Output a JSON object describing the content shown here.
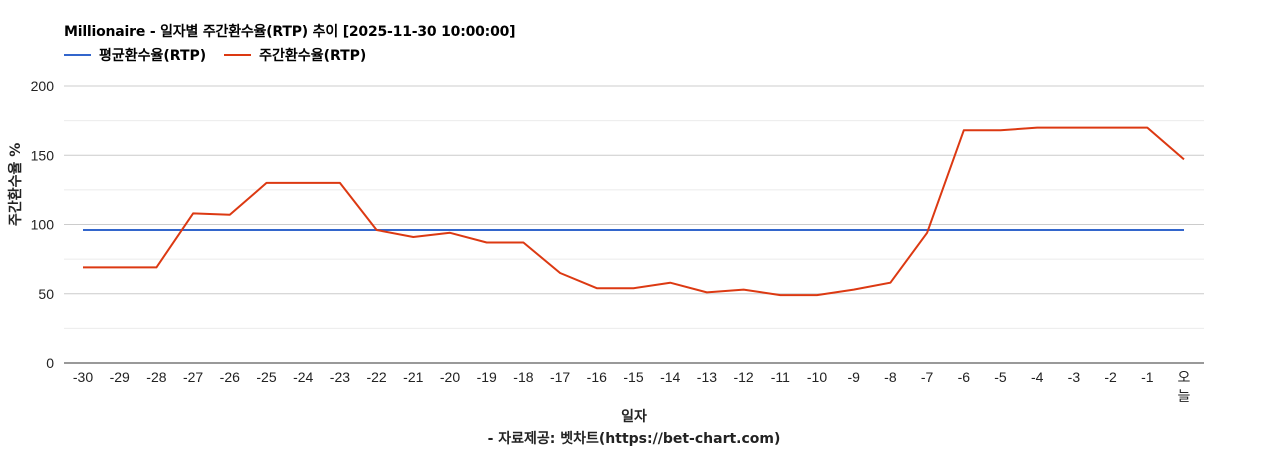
{
  "title": "Millionaire - 일자별 주간환수율(RTP) 추이 [2025-11-30 10:00:00]",
  "legend": [
    {
      "label": "평균환수율(RTP)",
      "color": "#3366cc"
    },
    {
      "label": "주간환수율(RTP)",
      "color": "#dc3912"
    }
  ],
  "axes": {
    "ylabel": "주간환수율 %",
    "xlabel": "일자",
    "source": "- 자료제공: 벳차트(https://bet-chart.com)"
  },
  "chart_data": {
    "type": "line",
    "title": "Millionaire - 일자별 주간환수율(RTP) 추이 [2025-11-30 10:00:00]",
    "xlabel": "일자",
    "ylabel": "주간환수율 %",
    "ylim": [
      0,
      200
    ],
    "yticks": [
      0,
      50,
      100,
      150,
      200
    ],
    "grid": true,
    "legend_position": "top",
    "categories": [
      "-30",
      "-29",
      "-28",
      "-27",
      "-26",
      "-25",
      "-24",
      "-23",
      "-22",
      "-21",
      "-20",
      "-19",
      "-18",
      "-17",
      "-16",
      "-15",
      "-14",
      "-13",
      "-12",
      "-11",
      "-10",
      "-9",
      "-8",
      "-7",
      "-6",
      "-5",
      "-4",
      "-3",
      "-2",
      "-1",
      "오늘"
    ],
    "series": [
      {
        "name": "평균환수율(RTP)",
        "color": "#3366cc",
        "values": [
          96,
          96,
          96,
          96,
          96,
          96,
          96,
          96,
          96,
          96,
          96,
          96,
          96,
          96,
          96,
          96,
          96,
          96,
          96,
          96,
          96,
          96,
          96,
          96,
          96,
          96,
          96,
          96,
          96,
          96,
          96
        ]
      },
      {
        "name": "주간환수율(RTP)",
        "color": "#dc3912",
        "values": [
          69,
          69,
          69,
          108,
          107,
          130,
          130,
          130,
          96,
          91,
          94,
          87,
          87,
          65,
          54,
          54,
          58,
          51,
          53,
          49,
          49,
          53,
          58,
          94,
          168,
          168,
          170,
          170,
          170,
          170,
          147
        ]
      }
    ]
  }
}
